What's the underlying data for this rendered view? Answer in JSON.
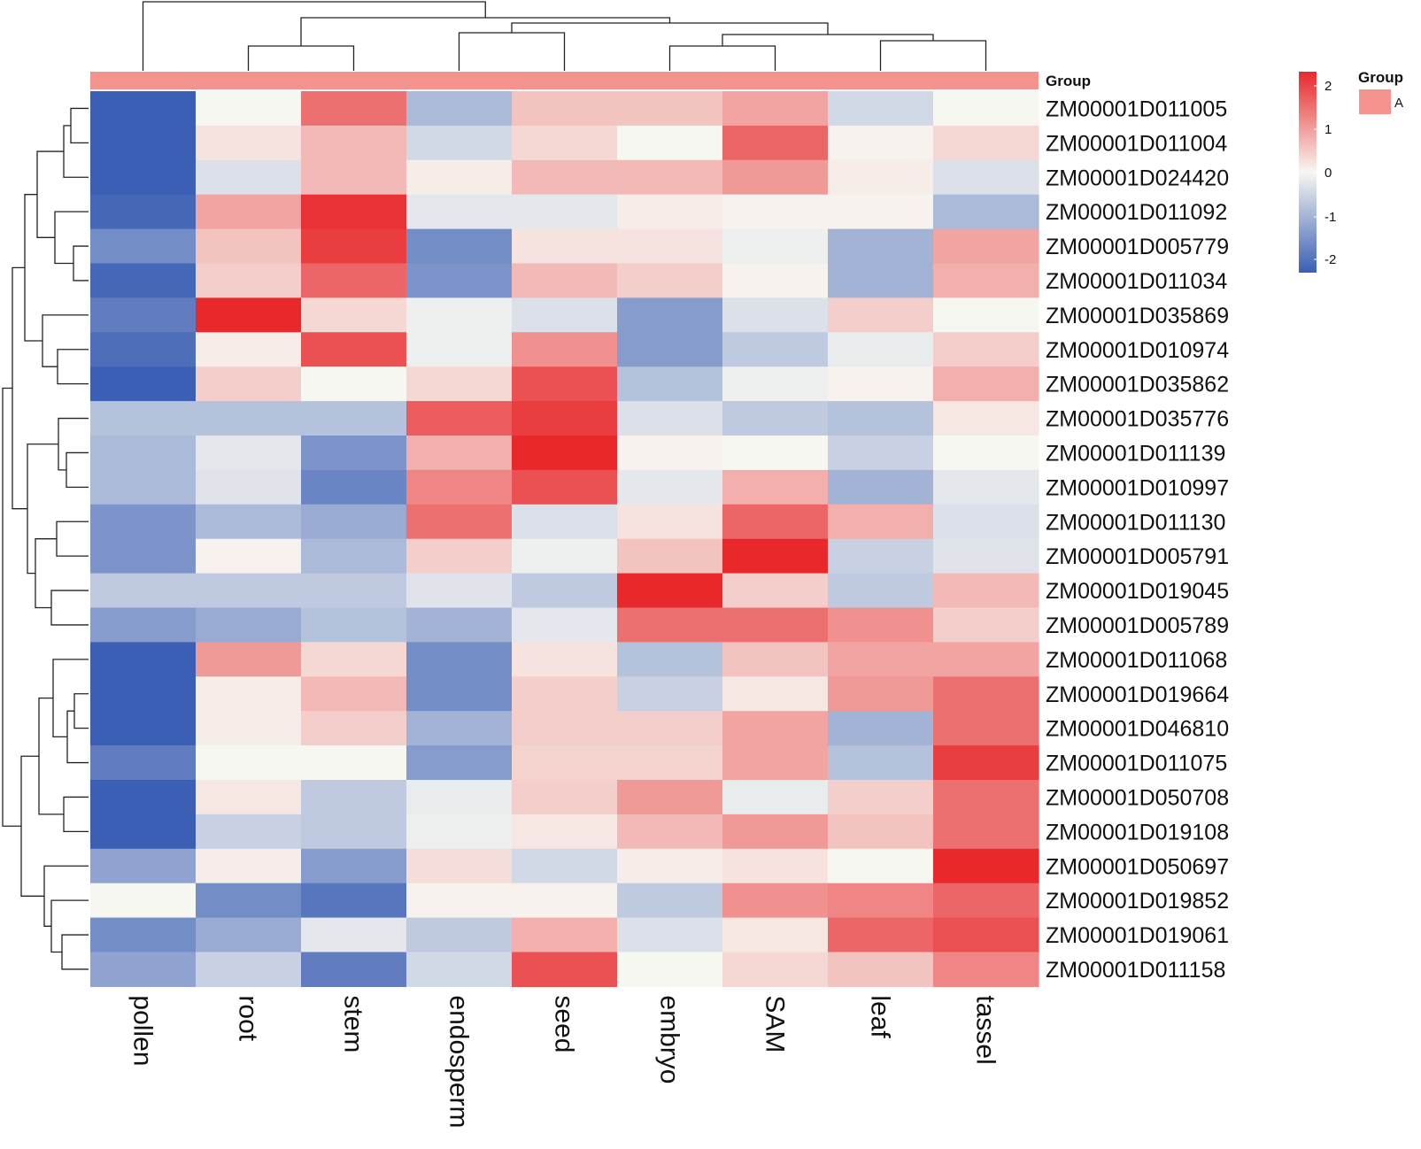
{
  "chart_data": {
    "type": "heatmap",
    "title": "",
    "columns": [
      "pollen",
      "root",
      "stem",
      "endosperm",
      "seed",
      "embryo",
      "SAM",
      "leaf",
      "tassel"
    ],
    "rows": [
      "ZM00001D011005",
      "ZM00001D011004",
      "ZM00001D024420",
      "ZM00001D011092",
      "ZM00001D005779",
      "ZM00001D011034",
      "ZM00001D035869",
      "ZM00001D010974",
      "ZM00001D035862",
      "ZM00001D035776",
      "ZM00001D011139",
      "ZM00001D010997",
      "ZM00001D011130",
      "ZM00001D005791",
      "ZM00001D019045",
      "ZM00001D005789",
      "ZM00001D011068",
      "ZM00001D019664",
      "ZM00001D046810",
      "ZM00001D011075",
      "ZM00001D050708",
      "ZM00001D019108",
      "ZM00001D050697",
      "ZM00001D019852",
      "ZM00001D019061",
      "ZM00001D011158"
    ],
    "values": [
      [
        -2.0,
        0.0,
        1.3,
        -0.8,
        0.5,
        0.5,
        0.8,
        -0.4,
        0.0
      ],
      [
        -2.2,
        0.2,
        0.6,
        -0.4,
        0.3,
        0.0,
        1.4,
        0.05,
        0.3
      ],
      [
        -2.2,
        -0.3,
        0.6,
        0.1,
        0.6,
        0.6,
        0.9,
        0.1,
        -0.3
      ],
      [
        -1.9,
        0.8,
        1.9,
        -0.2,
        -0.2,
        0.1,
        0.05,
        0.05,
        -0.8
      ],
      [
        -1.4,
        0.5,
        1.8,
        -1.4,
        0.2,
        0.2,
        -0.1,
        -0.9,
        0.8
      ],
      [
        -1.9,
        0.4,
        1.4,
        -1.3,
        0.6,
        0.4,
        0.05,
        -0.9,
        0.7
      ],
      [
        -1.6,
        2.3,
        0.3,
        -0.1,
        -0.3,
        -1.2,
        -0.3,
        0.4,
        0.0
      ],
      [
        -1.8,
        0.1,
        1.6,
        -0.1,
        1.0,
        -1.2,
        -0.6,
        -0.15,
        0.4
      ],
      [
        -2.1,
        0.4,
        0.0,
        0.3,
        1.6,
        -0.7,
        -0.1,
        0.05,
        0.7
      ],
      [
        -0.7,
        -0.7,
        -0.7,
        1.5,
        1.8,
        -0.3,
        -0.6,
        -0.7,
        0.15
      ],
      [
        -0.8,
        -0.2,
        -1.3,
        0.7,
        2.3,
        0.05,
        0.0,
        -0.5,
        0.0
      ],
      [
        -0.8,
        -0.25,
        -1.5,
        1.1,
        1.6,
        -0.2,
        0.7,
        -0.9,
        -0.2
      ],
      [
        -1.3,
        -0.8,
        -1.0,
        1.3,
        -0.3,
        0.2,
        1.4,
        0.7,
        -0.3
      ],
      [
        -1.3,
        0.05,
        -0.8,
        0.4,
        -0.1,
        0.5,
        2.3,
        -0.5,
        -0.25
      ],
      [
        -0.6,
        -0.6,
        -0.6,
        -0.25,
        -0.6,
        2.3,
        0.4,
        -0.6,
        0.6
      ],
      [
        -1.2,
        -1.0,
        -0.7,
        -0.9,
        -0.2,
        1.3,
        1.3,
        1.0,
        0.4
      ],
      [
        -2.0,
        0.9,
        0.3,
        -1.4,
        0.2,
        -0.7,
        0.5,
        0.8,
        0.8
      ],
      [
        -2.0,
        0.1,
        0.6,
        -1.4,
        0.4,
        -0.5,
        0.15,
        0.9,
        1.3
      ],
      [
        -2.0,
        0.1,
        0.4,
        -0.9,
        0.4,
        0.4,
        0.8,
        -0.9,
        1.3
      ],
      [
        -1.6,
        0.0,
        0.0,
        -1.2,
        0.35,
        0.35,
        0.8,
        -0.7,
        1.8
      ],
      [
        -2.1,
        0.15,
        -0.6,
        -0.15,
        0.4,
        0.9,
        -0.15,
        0.4,
        1.3
      ],
      [
        -2.0,
        -0.5,
        -0.6,
        -0.1,
        0.15,
        0.6,
        0.9,
        0.5,
        1.3
      ],
      [
        -1.1,
        0.1,
        -1.2,
        0.25,
        -0.4,
        0.1,
        0.2,
        0.0,
        2.3
      ],
      [
        0.0,
        -1.4,
        -1.7,
        0.05,
        0.05,
        -0.6,
        1.0,
        1.1,
        1.4
      ],
      [
        -1.4,
        -1.0,
        -0.2,
        -0.6,
        0.7,
        -0.3,
        0.15,
        1.4,
        1.6
      ],
      [
        -1.1,
        -0.5,
        -1.6,
        -0.4,
        1.6,
        0.0,
        0.3,
        0.5,
        1.1
      ]
    ],
    "scale_min": -2,
    "scale_max": 2,
    "legend_ticks": [
      "2",
      "1",
      "0",
      "-1",
      "-2"
    ],
    "colors": {
      "low": "#3b5fb4",
      "mid": "#f7f7f2",
      "high": "#e8282b",
      "group": "#f4928d",
      "dendrogram": "#222222"
    },
    "annotation": {
      "label": "Group",
      "legend_title": "Group",
      "categories": [
        "A"
      ]
    }
  }
}
